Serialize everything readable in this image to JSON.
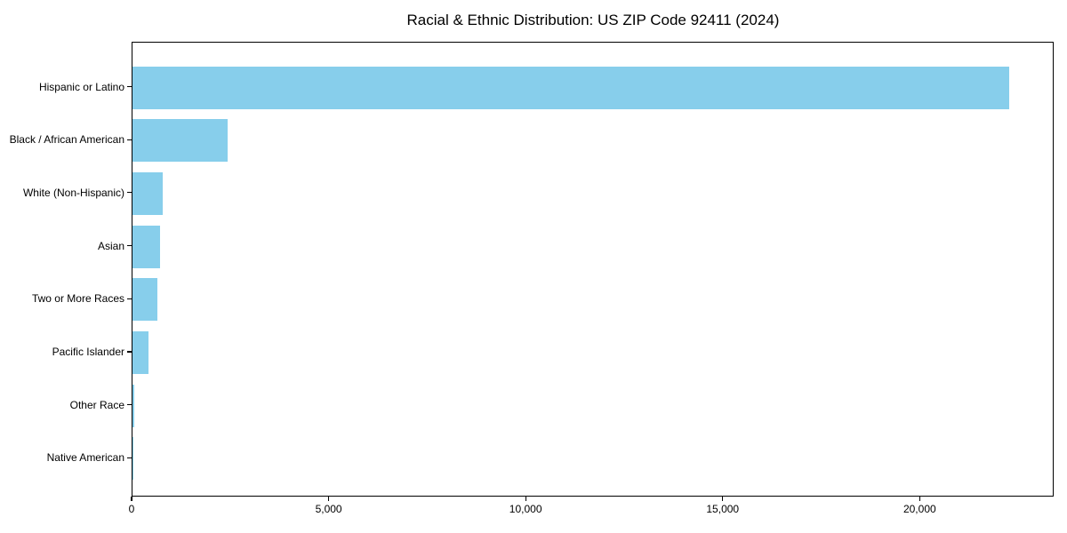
{
  "chart_data": {
    "type": "bar",
    "orientation": "horizontal",
    "title": "Racial & Ethnic Distribution: US ZIP Code 92411 (2024)",
    "categories": [
      "Hispanic or Latino",
      "Black / African American",
      "White (Non-Hispanic)",
      "Asian",
      "Two or More Races",
      "Pacific Islander",
      "Other Race",
      "Native American"
    ],
    "values": [
      22250,
      2410,
      760,
      700,
      630,
      405,
      35,
      10
    ],
    "xlabel": "",
    "ylabel": "",
    "xlim": [
      0,
      23400
    ],
    "x_ticks": [
      0,
      5000,
      10000,
      15000,
      20000
    ],
    "x_tick_labels": [
      "0",
      "5,000",
      "10,000",
      "15,000",
      "20,000"
    ],
    "bar_color": "#87CEEB",
    "text_color": "#000000",
    "spine_color": "#000000",
    "background_color": "#FFFFFF",
    "grid": false,
    "legend_position": "none"
  }
}
